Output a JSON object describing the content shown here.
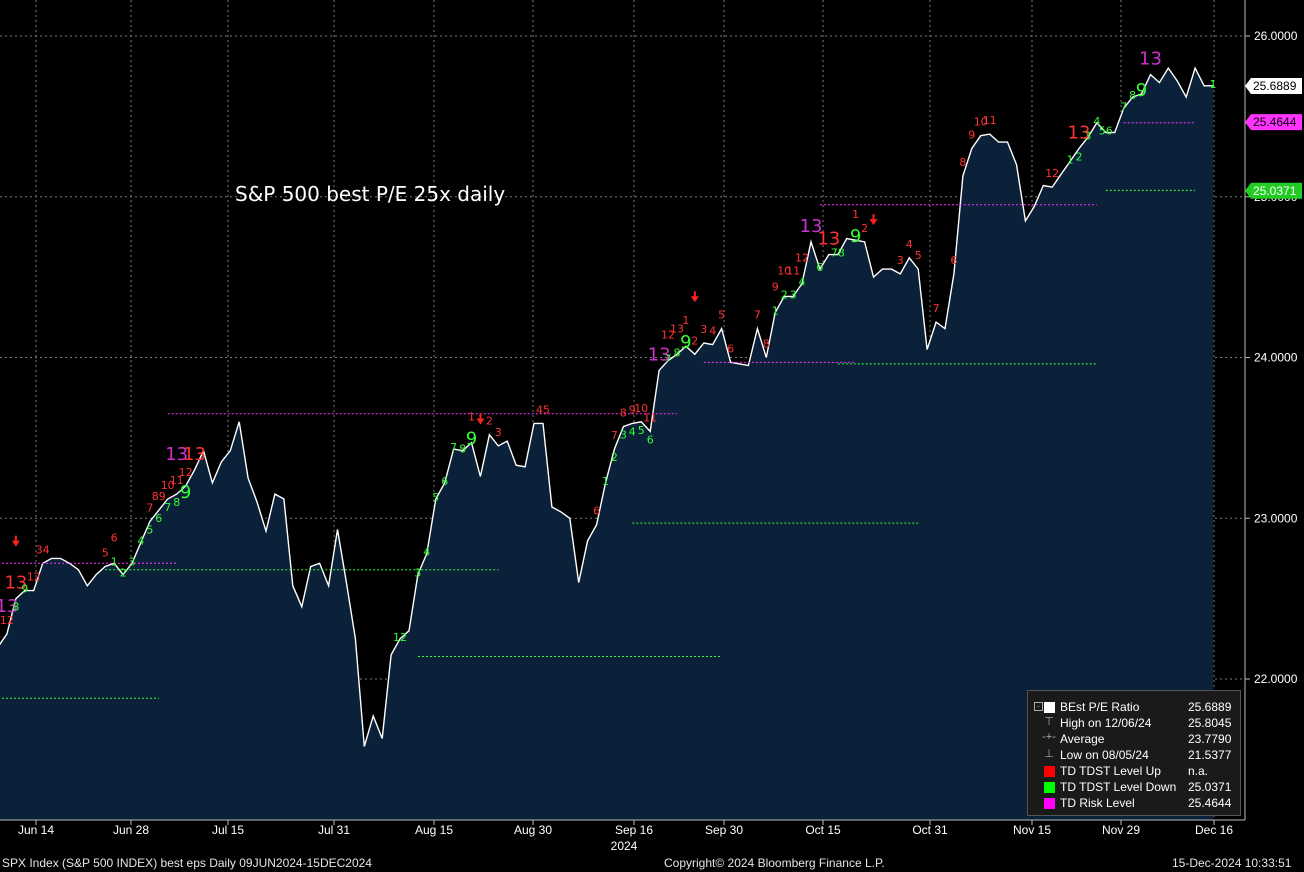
{
  "chart_data": {
    "type": "area",
    "title": "S&P 500 best P/E 25x daily",
    "y_ticks": [
      "22.0000",
      "23.0000",
      "24.0000",
      "25.0000",
      "26.0000"
    ],
    "ylim": [
      21.0,
      26.2
    ],
    "x_tick_labels": [
      "Jun 14",
      "Jun 28",
      "Jul 15",
      "Jul 31",
      "Aug 15",
      "Aug 30",
      "Sep 16",
      "Sep 30",
      "Oct 15",
      "Oct 31",
      "Nov 15",
      "Nov 29",
      "Dec 16"
    ],
    "x_year_label": "2024",
    "series": [
      {
        "name": "BEst P/E Ratio",
        "color": "#ffffff",
        "fill": "#0b2039",
        "values": [
          22.2,
          22.28,
          22.5,
          22.55,
          22.55,
          22.72,
          22.75,
          22.75,
          22.72,
          22.68,
          22.58,
          22.65,
          22.7,
          22.72,
          22.65,
          22.72,
          22.85,
          22.98,
          23.05,
          23.12,
          23.15,
          23.2,
          23.3,
          23.42,
          23.22,
          23.35,
          23.42,
          23.6,
          23.25,
          23.1,
          22.92,
          23.15,
          23.12,
          22.58,
          22.45,
          22.7,
          22.72,
          22.58,
          22.93,
          22.6,
          22.25,
          21.58,
          21.77,
          21.63,
          22.15,
          22.25,
          22.3,
          22.65,
          22.78,
          23.12,
          23.22,
          23.43,
          23.42,
          23.47,
          23.26,
          23.52,
          23.45,
          23.48,
          23.33,
          23.32,
          23.59,
          23.59,
          23.07,
          23.04,
          23.0,
          22.6,
          22.86,
          22.96,
          23.22,
          23.43,
          23.57,
          23.59,
          23.6,
          23.54,
          23.92,
          23.98,
          24.02,
          24.07,
          24.02,
          24.09,
          24.08,
          24.18,
          23.97,
          23.96,
          23.95,
          24.18,
          24.0,
          24.28,
          24.38,
          24.38,
          24.46,
          24.72,
          24.55,
          24.64,
          24.64,
          24.74,
          24.73,
          24.72,
          24.5,
          24.55,
          24.55,
          24.52,
          24.62,
          24.55,
          24.05,
          24.22,
          24.18,
          24.52,
          25.13,
          25.3,
          25.38,
          25.39,
          25.34,
          25.34,
          25.2,
          24.85,
          24.94,
          25.07,
          25.06,
          25.14,
          25.22,
          25.3,
          25.37,
          25.46,
          25.4,
          25.4,
          25.55,
          25.62,
          25.64,
          25.76,
          25.71,
          25.8,
          25.72,
          25.62,
          25.8,
          25.69,
          25.69
        ]
      }
    ],
    "levels": [
      {
        "type": "risk",
        "color": "#ff33ff",
        "y": 22.72,
        "x0": 0,
        "x1": 20
      },
      {
        "type": "down",
        "color": "#33ff33",
        "y": 22.68,
        "x0": 12,
        "x1": 56
      },
      {
        "type": "down",
        "color": "#33ff33",
        "y": 21.88,
        "x0": 0,
        "x1": 18
      },
      {
        "type": "risk",
        "color": "#ff33ff",
        "y": 23.65,
        "x0": 19,
        "x1": 76
      },
      {
        "type": "down",
        "color": "#33ff33",
        "y": 22.14,
        "x0": 47,
        "x1": 81
      },
      {
        "type": "down",
        "color": "#33ff33",
        "y": 22.97,
        "x0": 71,
        "x1": 103
      },
      {
        "type": "risk",
        "color": "#ff33ff",
        "y": 23.97,
        "x0": 79,
        "x1": 96
      },
      {
        "type": "down",
        "color": "#33ff33",
        "y": 23.96,
        "x0": 94,
        "x1": 123
      },
      {
        "type": "risk",
        "color": "#ff33ff",
        "y": 24.95,
        "x0": 92,
        "x1": 123
      },
      {
        "type": "down",
        "color": "#33ff33",
        "y": 25.04,
        "x0": 124,
        "x1": 134
      },
      {
        "type": "risk",
        "color": "#ff33ff",
        "y": 25.46,
        "x0": 126,
        "x1": 134
      }
    ],
    "td_counts": [
      {
        "i": 0,
        "t": "1",
        "c": "#ff3333"
      },
      {
        "i": 1,
        "t": "12",
        "c": "#ff3333"
      },
      {
        "i": 1,
        "t": "13",
        "c": "#cc33cc",
        "big": true
      },
      {
        "i": 2,
        "t": "13",
        "c": "#ff3333",
        "big": true
      },
      {
        "i": 2,
        "t": "8",
        "c": "#33ff33"
      },
      {
        "i": 3,
        "t": "9",
        "c": "#33ff33"
      },
      {
        "i": 4,
        "t": "12",
        "c": "#ff3333"
      },
      {
        "i": 5,
        "t": "34",
        "c": "#ff3333"
      },
      {
        "i": 12,
        "t": "5",
        "c": "#ff3333"
      },
      {
        "i": 13,
        "t": "1",
        "c": "#33ff33"
      },
      {
        "i": 13,
        "t": "6",
        "c": "#ff3333"
      },
      {
        "i": 14,
        "t": "2",
        "c": "#33ff33"
      },
      {
        "i": 15,
        "t": "3",
        "c": "#33ff33"
      },
      {
        "i": 16,
        "t": "4",
        "c": "#33ff33"
      },
      {
        "i": 17,
        "t": "7",
        "c": "#ff3333"
      },
      {
        "i": 17,
        "t": "5",
        "c": "#33ff33"
      },
      {
        "i": 18,
        "t": "89",
        "c": "#ff3333"
      },
      {
        "i": 18,
        "t": "6",
        "c": "#33ff33"
      },
      {
        "i": 19,
        "t": "10",
        "c": "#ff3333"
      },
      {
        "i": 19,
        "t": "7",
        "c": "#33ff33"
      },
      {
        "i": 20,
        "t": "11",
        "c": "#ff3333"
      },
      {
        "i": 20,
        "t": "8",
        "c": "#33ff33"
      },
      {
        "i": 21,
        "t": "12",
        "c": "#ff3333"
      },
      {
        "i": 21,
        "t": "9",
        "c": "#33ff33",
        "big": true
      },
      {
        "i": 20,
        "t": "13",
        "c": "#cc33cc",
        "big": true
      },
      {
        "i": 22,
        "t": "13",
        "c": "#ff3333",
        "big": true
      },
      {
        "i": 49,
        "t": "5",
        "c": "#33ff33"
      },
      {
        "i": 50,
        "t": "6",
        "c": "#33ff33"
      },
      {
        "i": 51,
        "t": "7",
        "c": "#33ff33"
      },
      {
        "i": 52,
        "t": "8",
        "c": "#33ff33"
      },
      {
        "i": 53,
        "t": "9",
        "c": "#33ff33",
        "big": true
      },
      {
        "i": 53,
        "t": "1",
        "c": "#ff3333"
      },
      {
        "i": 55,
        "t": "2",
        "c": "#ff3333"
      },
      {
        "i": 56,
        "t": "3",
        "c": "#ff3333"
      },
      {
        "i": 61,
        "t": "45",
        "c": "#ff3333"
      },
      {
        "i": 45,
        "t": "12",
        "c": "#33ff33"
      },
      {
        "i": 47,
        "t": "3",
        "c": "#33ff33"
      },
      {
        "i": 48,
        "t": "4",
        "c": "#33ff33"
      },
      {
        "i": 67,
        "t": "6",
        "c": "#ff3333"
      },
      {
        "i": 68,
        "t": "1",
        "c": "#33ff33"
      },
      {
        "i": 69,
        "t": "7",
        "c": "#ff3333"
      },
      {
        "i": 69,
        "t": "2",
        "c": "#33ff33"
      },
      {
        "i": 70,
        "t": "8",
        "c": "#ff3333"
      },
      {
        "i": 70,
        "t": "3",
        "c": "#33ff33"
      },
      {
        "i": 71,
        "t": "9",
        "c": "#ff3333"
      },
      {
        "i": 71,
        "t": "4",
        "c": "#33ff33"
      },
      {
        "i": 72,
        "t": "10",
        "c": "#ff3333"
      },
      {
        "i": 72,
        "t": "5",
        "c": "#33ff33"
      },
      {
        "i": 73,
        "t": "11",
        "c": "#ff3333"
      },
      {
        "i": 73,
        "t": "6",
        "c": "#33ff33"
      },
      {
        "i": 74,
        "t": "13",
        "c": "#cc33cc",
        "big": true
      },
      {
        "i": 75,
        "t": "7",
        "c": "#33ff33"
      },
      {
        "i": 75,
        "t": "12",
        "c": "#ff3333"
      },
      {
        "i": 76,
        "t": "8",
        "c": "#33ff33"
      },
      {
        "i": 76,
        "t": "13",
        "c": "#ff3333"
      },
      {
        "i": 77,
        "t": "9",
        "c": "#33ff33",
        "big": true
      },
      {
        "i": 77,
        "t": "1",
        "c": "#ff3333"
      },
      {
        "i": 78,
        "t": "2",
        "c": "#ff3333"
      },
      {
        "i": 79,
        "t": "3",
        "c": "#ff3333"
      },
      {
        "i": 80,
        "t": "4",
        "c": "#ff3333"
      },
      {
        "i": 81,
        "t": "5",
        "c": "#ff3333"
      },
      {
        "i": 82,
        "t": "6",
        "c": "#ff3333"
      },
      {
        "i": 85,
        "t": "7",
        "c": "#ff3333"
      },
      {
        "i": 86,
        "t": "8",
        "c": "#ff3333"
      },
      {
        "i": 87,
        "t": "1",
        "c": "#33ff33"
      },
      {
        "i": 87,
        "t": "9",
        "c": "#ff3333"
      },
      {
        "i": 88,
        "t": "2",
        "c": "#33ff33"
      },
      {
        "i": 88,
        "t": "10",
        "c": "#ff3333"
      },
      {
        "i": 89,
        "t": "3",
        "c": "#33ff33"
      },
      {
        "i": 89,
        "t": "11",
        "c": "#ff3333"
      },
      {
        "i": 90,
        "t": "4",
        "c": "#33ff33"
      },
      {
        "i": 90,
        "t": "12",
        "c": "#ff3333"
      },
      {
        "i": 91,
        "t": "13",
        "c": "#cc33cc",
        "big": true
      },
      {
        "i": 92,
        "t": "6",
        "c": "#33ff33"
      },
      {
        "i": 93,
        "t": "13",
        "c": "#ff3333",
        "big": true
      },
      {
        "i": 94,
        "t": "78",
        "c": "#33ff33"
      },
      {
        "i": 96,
        "t": "9",
        "c": "#33ff33",
        "big": true
      },
      {
        "i": 96,
        "t": "1",
        "c": "#ff3333"
      },
      {
        "i": 97,
        "t": "2",
        "c": "#ff3333"
      },
      {
        "i": 101,
        "t": "3",
        "c": "#ff3333"
      },
      {
        "i": 102,
        "t": "4",
        "c": "#ff3333"
      },
      {
        "i": 103,
        "t": "5",
        "c": "#ff3333"
      },
      {
        "i": 107,
        "t": "6",
        "c": "#ff3333"
      },
      {
        "i": 105,
        "t": "7",
        "c": "#ff3333"
      },
      {
        "i": 108,
        "t": "8",
        "c": "#ff3333"
      },
      {
        "i": 109,
        "t": "9",
        "c": "#ff3333"
      },
      {
        "i": 110,
        "t": "10",
        "c": "#ff3333"
      },
      {
        "i": 111,
        "t": "11",
        "c": "#ff3333"
      },
      {
        "i": 118,
        "t": "12",
        "c": "#ff3333"
      },
      {
        "i": 121,
        "t": "13",
        "c": "#ff3333",
        "big": true
      },
      {
        "i": 120,
        "t": "1",
        "c": "#33ff33"
      },
      {
        "i": 121,
        "t": "2",
        "c": "#33ff33"
      },
      {
        "i": 122,
        "t": "3",
        "c": "#33ff33"
      },
      {
        "i": 123,
        "t": "4",
        "c": "#33ff33"
      },
      {
        "i": 124,
        "t": "56",
        "c": "#33ff33"
      },
      {
        "i": 126,
        "t": "7",
        "c": "#33ff33"
      },
      {
        "i": 127,
        "t": "8",
        "c": "#33ff33"
      },
      {
        "i": 128,
        "t": "9",
        "c": "#33ff33",
        "big": true
      },
      {
        "i": 129,
        "t": "13",
        "c": "#cc33cc",
        "big": true
      },
      {
        "i": 136,
        "t": "1",
        "c": "#33ff33"
      }
    ],
    "arrows": [
      2,
      54,
      78,
      98
    ],
    "last_value": "25.6889",
    "risk_level_value": "25.4644",
    "down_level_value": "25.0371"
  },
  "legend": {
    "rows": [
      {
        "label": "BEst P/E Ratio",
        "value": "25.6889",
        "swatch": "#ffffff"
      },
      {
        "label": "High on 12/06/24",
        "value": "25.8045",
        "glyph": "⊤"
      },
      {
        "label": "Average",
        "value": "23.7790",
        "glyph": "-+-"
      },
      {
        "label": "Low on 08/05/24",
        "value": "21.5377",
        "glyph": "⊥"
      },
      {
        "label": "TD TDST Level Up",
        "value": "n.a.",
        "swatch": "#ff0000"
      },
      {
        "label": "TD TDST Level Down",
        "value": "25.0371",
        "swatch": "#00ff00"
      },
      {
        "label": "TD Risk Level",
        "value": "25.4644",
        "swatch": "#ff00ff"
      }
    ]
  },
  "footer": {
    "left": "SPX Index (S&P 500 INDEX) best eps  Daily 09JUN2024-15DEC2024",
    "center": "Copyright© 2024 Bloomberg Finance L.P.",
    "right": "15-Dec-2024 10:33:51"
  }
}
